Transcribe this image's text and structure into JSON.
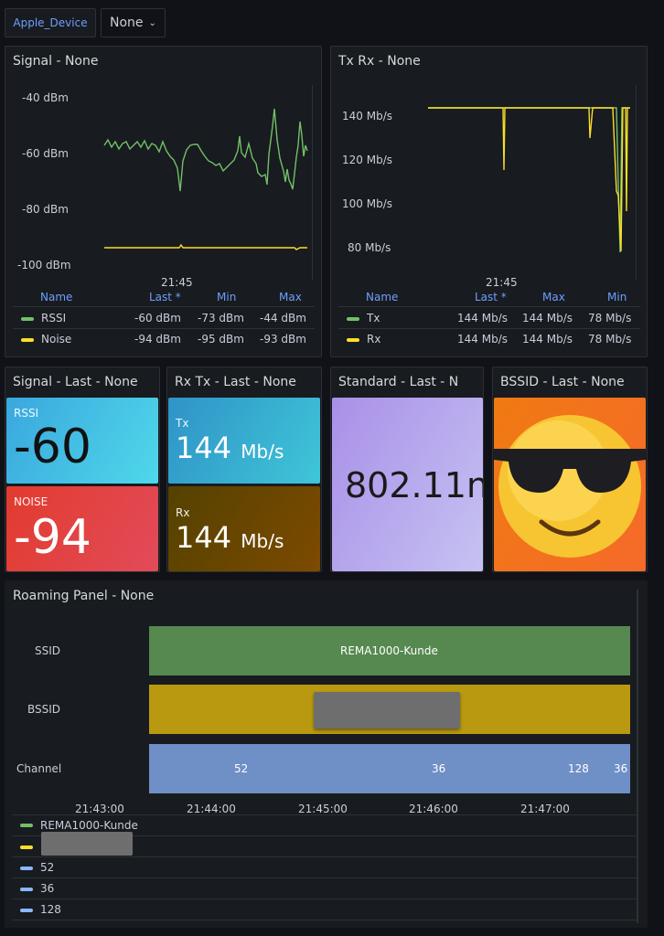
{
  "variables": {
    "device_label": "Apple_Device",
    "device_value": "None"
  },
  "signal_panel": {
    "title": "Signal - None",
    "y_ticks": [
      "-40 dBm",
      "-60 dBm",
      "-80 dBm",
      "-100 dBm"
    ],
    "x_ticks": [
      "21:45"
    ],
    "legend_headers": [
      "Name",
      "Last *",
      "Min",
      "Max"
    ],
    "legend": [
      {
        "name": "RSSI",
        "color": "#73bf69",
        "last": "-60 dBm",
        "min": "-73 dBm",
        "max": "-44 dBm"
      },
      {
        "name": "Noise",
        "color": "#fade2a",
        "last": "-94 dBm",
        "min": "-95 dBm",
        "max": "-93 dBm"
      }
    ]
  },
  "txrx_panel": {
    "title": "Tx Rx - None",
    "y_ticks": [
      "140 Mb/s",
      "120 Mb/s",
      "100 Mb/s",
      "80 Mb/s"
    ],
    "x_ticks": [
      "21:45"
    ],
    "legend_headers": [
      "Name",
      "Last *",
      "Max",
      "Min"
    ],
    "legend": [
      {
        "name": "Tx",
        "color": "#73bf69",
        "last": "144 Mb/s",
        "max": "144 Mb/s",
        "min": "78 Mb/s"
      },
      {
        "name": "Rx",
        "color": "#fade2a",
        "last": "144 Mb/s",
        "max": "144 Mb/s",
        "min": "78 Mb/s"
      }
    ]
  },
  "signal_last": {
    "title": "Signal - Last - None",
    "rssi_label": "RSSI",
    "rssi_value": "-60",
    "noise_label": "NOISE",
    "noise_value": "-94"
  },
  "rxtx_last": {
    "title": "Rx Tx - Last - None",
    "tx_label": "Tx",
    "tx_value": "144",
    "tx_unit": "Mb/s",
    "rx_label": "Rx",
    "rx_value": "144",
    "rx_unit": "Mb/s"
  },
  "standard_last": {
    "title": "Standard - Last - N",
    "value": "802.11n"
  },
  "bssid_last": {
    "title": "BSSID - Last - None",
    "icon": "sunglasses-emoji-icon"
  },
  "roaming_panel": {
    "title": "Roaming Panel - None",
    "rows": [
      "SSID",
      "BSSID",
      "Channel"
    ],
    "ssid_value": "REMA1000-Kunde",
    "channel_values": [
      "52",
      "36",
      "128",
      "36"
    ],
    "x_ticks": [
      "21:43:00",
      "21:44:00",
      "21:45:00",
      "21:46:00",
      "21:47:00"
    ],
    "legend": [
      {
        "name": "REMA1000-Kunde",
        "color": "#73bf69"
      },
      {
        "name": "",
        "color": "#fade2a"
      },
      {
        "name": "52",
        "color": "#8ab8ff"
      },
      {
        "name": "36",
        "color": "#8ab8ff"
      },
      {
        "name": "128",
        "color": "#8ab8ff"
      }
    ]
  },
  "colors": {
    "rssi_line": "#73bf69",
    "noise_line": "#fade2a",
    "ssid_bar": "#56894f",
    "bssid_bar": "#b8990f",
    "channel_bar": "#6f8fc7"
  }
}
